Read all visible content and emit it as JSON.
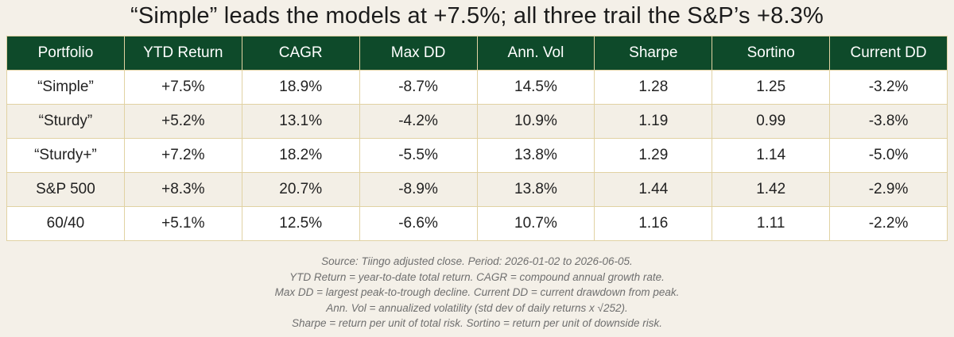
{
  "title": "“Simple” leads the models at +7.5%; all three trail the S&P’s +8.3%",
  "colors": {
    "header_bg": "#0e4a2a",
    "header_text": "#ffffff",
    "grid_line": "#e1d2a3",
    "alt_row_bg": "#f3efe6",
    "page_bg": "#f4f0e8"
  },
  "chart_data": {
    "type": "table",
    "columns": [
      "Portfolio",
      "YTD Return",
      "CAGR",
      "Max DD",
      "Ann. Vol",
      "Sharpe",
      "Sortino",
      "Current DD"
    ],
    "rows": [
      [
        "“Simple”",
        "+7.5%",
        "18.9%",
        "-8.7%",
        "14.5%",
        "1.28",
        "1.25",
        "-3.2%"
      ],
      [
        "“Sturdy”",
        "+5.2%",
        "13.1%",
        "-4.2%",
        "10.9%",
        "1.19",
        "0.99",
        "-3.8%"
      ],
      [
        "“Sturdy+”",
        "+7.2%",
        "18.2%",
        "-5.5%",
        "13.8%",
        "1.29",
        "1.14",
        "-5.0%"
      ],
      [
        "S&P 500",
        "+8.3%",
        "20.7%",
        "-8.9%",
        "13.8%",
        "1.44",
        "1.42",
        "-2.9%"
      ],
      [
        "60/40",
        "+5.1%",
        "12.5%",
        "-6.6%",
        "10.7%",
        "1.16",
        "1.11",
        "-2.2%"
      ]
    ]
  },
  "notes": [
    "Source: Tiingo adjusted close. Period: 2026-01-02 to 2026-06-05.",
    "YTD Return = year-to-date total return. CAGR = compound annual growth rate.",
    "Max DD = largest peak-to-trough decline. Current DD = current drawdown from peak.",
    "Ann. Vol = annualized volatility (std dev of daily returns x √252).",
    "Sharpe = return per unit of total risk. Sortino = return per unit of downside risk."
  ]
}
